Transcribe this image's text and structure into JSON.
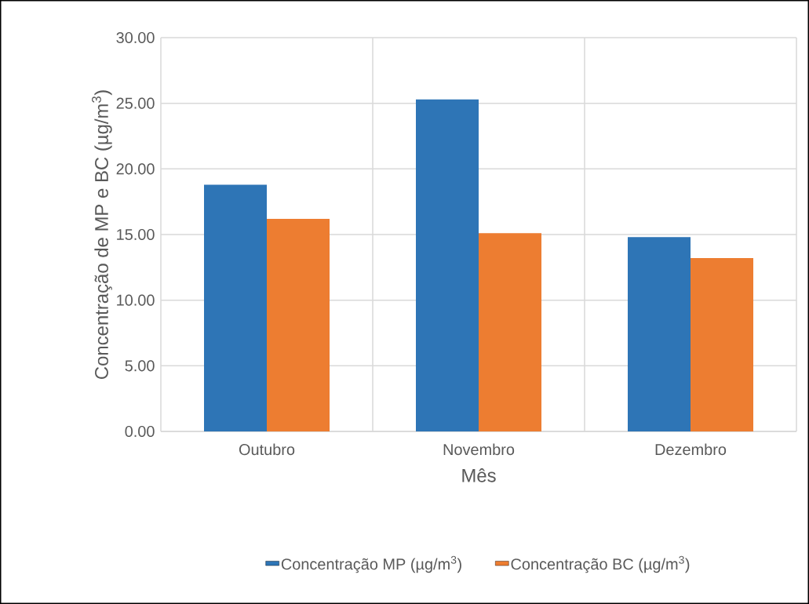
{
  "chart_data": {
    "type": "bar",
    "xlabel": "Mês",
    "ylabel": "Concentração de MP e BC (µg/m$^{3}$)",
    "categories": [
      "Outubro",
      "Novembro",
      "Dezembro"
    ],
    "series": [
      {
        "name": "Concentração MP (µg/m$^{3}$)",
        "color": "#2e75b6",
        "values": [
          18.8,
          25.3,
          14.8
        ]
      },
      {
        "name": "Concentração BC (µg/m$^{3}$)",
        "color": "#ed7d31",
        "values": [
          16.2,
          15.1,
          13.2
        ]
      }
    ],
    "ylim": [
      0,
      30
    ],
    "yticks": [
      {
        "value": 0,
        "label": "0.00"
      },
      {
        "value": 5,
        "label": "5.00"
      },
      {
        "value": 10,
        "label": "10.00"
      },
      {
        "value": 15,
        "label": "15.00"
      },
      {
        "value": 20,
        "label": "20.00"
      },
      {
        "value": 25,
        "label": "25.00"
      },
      {
        "value": 30,
        "label": "30.00"
      }
    ],
    "grid": true,
    "legend": "bottom"
  }
}
